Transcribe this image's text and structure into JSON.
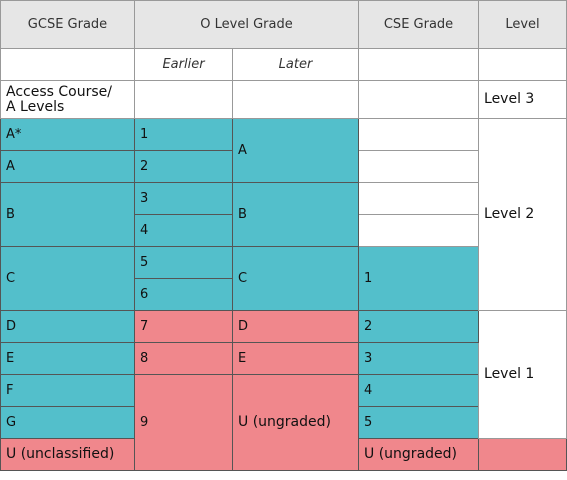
{
  "headers": {
    "gcse": "GCSE Grade",
    "olevel": "O Level Grade",
    "cse": "CSE Grade",
    "level": "Level"
  },
  "subheaders": {
    "earlier": "Earlier",
    "later": "Later"
  },
  "access": {
    "line1": "Access Course/",
    "line2": "A Levels"
  },
  "gcse": [
    "A*",
    "A",
    "B",
    "C",
    "D",
    "E",
    "F",
    "G",
    "U (unclassified)"
  ],
  "olevel_earlier": [
    "1",
    "2",
    "3",
    "4",
    "5",
    "6",
    "7",
    "8",
    "9"
  ],
  "olevel_later": [
    "A",
    "B",
    "C",
    "D",
    "E",
    "U (ungraded)"
  ],
  "cse": [
    "1",
    "2",
    "3",
    "4",
    "5",
    "U (ungraded)"
  ],
  "levels": [
    "Level 3",
    "Level 2",
    "Level 1"
  ],
  "colors": {
    "pass": "#53bfcb",
    "fail": "#f0878c",
    "header": "#e6e6e6"
  }
}
